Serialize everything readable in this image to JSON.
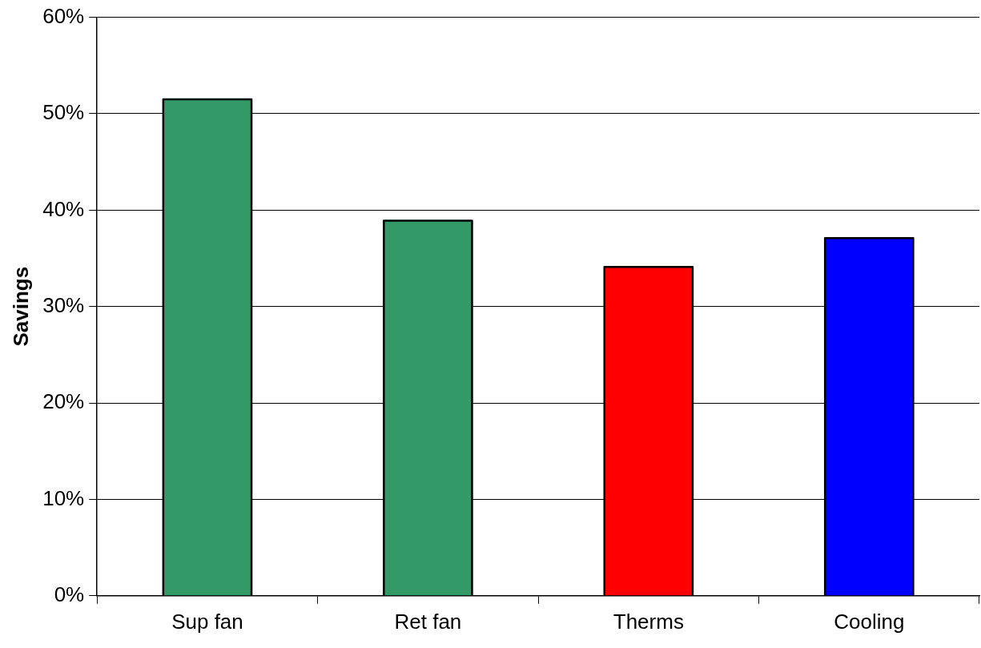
{
  "chart_data": {
    "type": "bar",
    "ylabel": "Savings",
    "categories": [
      "Sup fan",
      "Ret fan",
      "Therms",
      "Cooling"
    ],
    "values": [
      51.5,
      38.9,
      34.1,
      37.1
    ],
    "colors": [
      "#339966",
      "#339966",
      "#ff0000",
      "#0000ff"
    ],
    "ylim": [
      0,
      60
    ],
    "yticks": [
      {
        "value": 0,
        "label": "0%"
      },
      {
        "value": 10,
        "label": "10%"
      },
      {
        "value": 20,
        "label": "20%"
      },
      {
        "value": 30,
        "label": "30%"
      },
      {
        "value": 40,
        "label": "40%"
      },
      {
        "value": 50,
        "label": "50%"
      },
      {
        "value": 60,
        "label": "60%"
      }
    ],
    "grid": "y",
    "legend": false
  }
}
